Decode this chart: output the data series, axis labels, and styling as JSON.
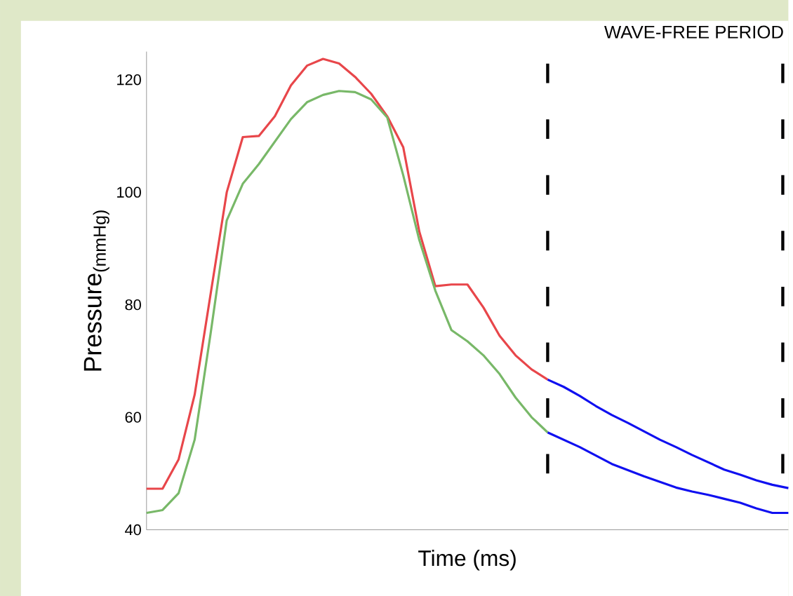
{
  "chart_data": {
    "type": "line",
    "xlabel": "Time (ms)",
    "ylabel": "Pressure$_{(mmHg)}$",
    "annotations": [
      "WAVE-FREE PERIOD"
    ],
    "ylim": [
      40,
      125
    ],
    "yticks": [
      40,
      60,
      80,
      100,
      120
    ],
    "tick_labels": "y",
    "marker": "none",
    "line_style": "solid",
    "categories": [
      null,
      null,
      null,
      null,
      null,
      null,
      null,
      null,
      null,
      null,
      null,
      null,
      null,
      null,
      null,
      null,
      null,
      null,
      null,
      null,
      null,
      null,
      null,
      null,
      null,
      null,
      null,
      null,
      null,
      null,
      null,
      null,
      null,
      null,
      null,
      null,
      null,
      null,
      null,
      null,
      null
    ],
    "series": [
      {
        "color": "#e8464a",
        "values": [
          47.3,
          47.3,
          52.5,
          64,
          82,
          100,
          109.8,
          110,
          113.5,
          119,
          122.5,
          123.7,
          122.9,
          120.5,
          117.5,
          113.5,
          108,
          93,
          83.3,
          83.6,
          83.6,
          79.5,
          74.5,
          71,
          68.5,
          66.7,
          null,
          null,
          null,
          null,
          null,
          null,
          null,
          null,
          null,
          null,
          null,
          null,
          null,
          null,
          null
        ]
      },
      {
        "color": "#78b868",
        "values": [
          43,
          43.5,
          46.5,
          56,
          75,
          95,
          101.5,
          105,
          109,
          113,
          116,
          117.3,
          118,
          117.8,
          116.5,
          113.3,
          103,
          91.5,
          82.5,
          75.5,
          73.5,
          71,
          67.7,
          63.5,
          60,
          57.3,
          null,
          null,
          null,
          null,
          null,
          null,
          null,
          null,
          null,
          null,
          null,
          null,
          null,
          null,
          null
        ]
      },
      {
        "color": "#1010f0",
        "values": [
          null,
          null,
          null,
          null,
          null,
          null,
          null,
          null,
          null,
          null,
          null,
          null,
          null,
          null,
          null,
          null,
          null,
          null,
          null,
          null,
          null,
          null,
          null,
          null,
          null,
          66.7,
          65.4,
          63.8,
          62,
          60.4,
          59,
          57.5,
          56,
          54.7,
          53.3,
          52,
          50.7,
          49.8,
          48.8,
          48,
          47.4
        ]
      },
      {
        "color": "#1010f0",
        "values": [
          null,
          null,
          null,
          null,
          null,
          null,
          null,
          null,
          null,
          null,
          null,
          null,
          null,
          null,
          null,
          null,
          null,
          null,
          null,
          null,
          null,
          null,
          null,
          null,
          null,
          57.3,
          56,
          54.7,
          53.2,
          51.7,
          50.6,
          49.5,
          48.5,
          47.5,
          46.8,
          46.2,
          45.5,
          44.8,
          43.8,
          43,
          43
        ]
      }
    ]
  }
}
